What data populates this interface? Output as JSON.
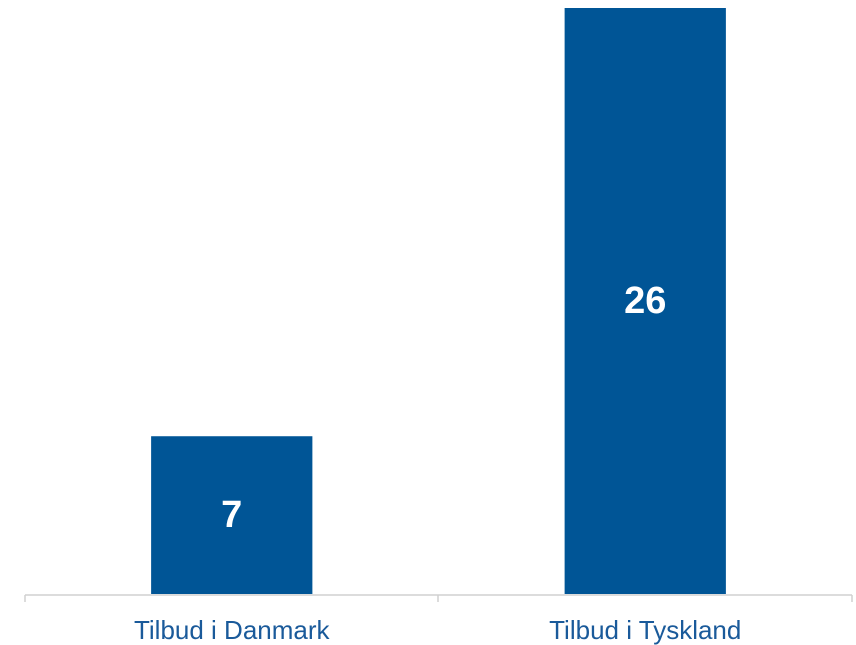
{
  "chart_data": {
    "type": "bar",
    "categories": [
      "Tilbud i Danmark",
      "Tilbud i Tyskland"
    ],
    "values": [
      7,
      26
    ],
    "color": "#005596",
    "ylim": [
      0,
      26
    ]
  }
}
